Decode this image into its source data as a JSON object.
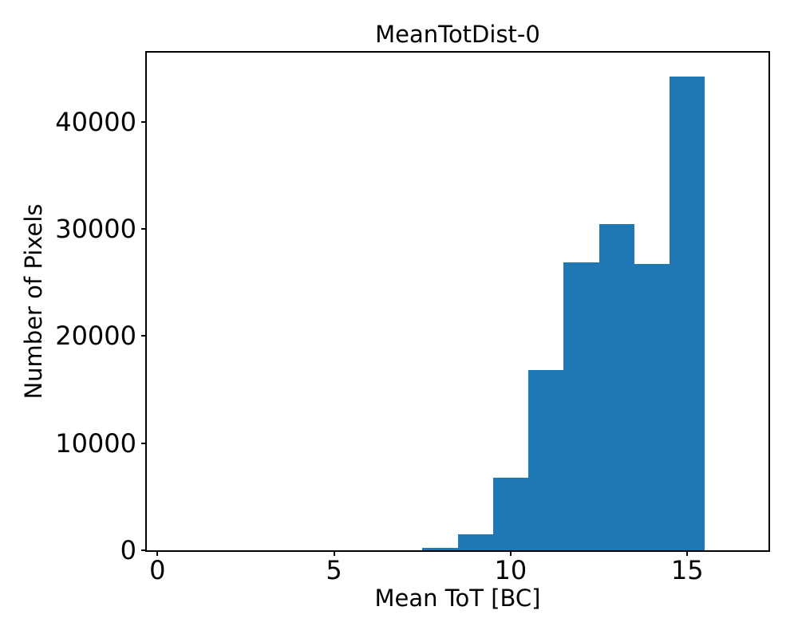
{
  "figure": {
    "background": "#ffffff"
  },
  "chart_data": {
    "type": "bar",
    "subtype": "histogram",
    "title": "MeanTotDist-0",
    "xlabel": "Mean ToT [BC]",
    "ylabel": "Number of Pixels",
    "bar_color": "#1f77b4",
    "axis_color": "#000000",
    "bin_edges": [
      7.5,
      8.5,
      9.5,
      10.5,
      11.5,
      12.5,
      13.5,
      14.5,
      15.5
    ],
    "counts": [
      250,
      1500,
      6800,
      16800,
      26900,
      30450,
      26700,
      44250
    ],
    "xlim": [
      -0.3,
      17.3
    ],
    "ylim": [
      0,
      46460
    ],
    "xticks": [
      0,
      5,
      10,
      15
    ],
    "xtick_labels": [
      "0",
      "5",
      "10",
      "15"
    ],
    "yticks": [
      0,
      10000,
      20000,
      30000,
      40000
    ],
    "ytick_labels": [
      "0",
      "10000",
      "20000",
      "30000",
      "40000"
    ],
    "grid": false,
    "legend": null
  }
}
